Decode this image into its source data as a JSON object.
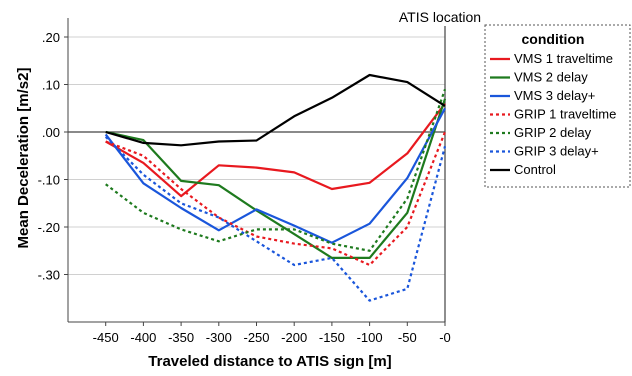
{
  "chart_data": {
    "type": "line",
    "xlabel": "Traveled distance to ATIS sign [m]",
    "ylabel": "Mean Deceleration [m/s2]",
    "x": [
      -450,
      -400,
      -350,
      -300,
      -250,
      -200,
      -150,
      -100,
      -50,
      0
    ],
    "x_tick_labels": [
      "-450",
      "-400",
      "-350",
      "-300",
      "-250",
      "-200",
      "-150",
      "-100",
      "-50",
      "-0"
    ],
    "xlim": [
      -500,
      0
    ],
    "y_ticks": [
      0.2,
      0.1,
      0.0,
      -0.1,
      -0.2,
      -0.3
    ],
    "y_tick_labels": [
      ".20",
      ".10",
      ".00",
      "-.10",
      "-.20",
      "-.30"
    ],
    "ylim": [
      -0.4,
      0.24
    ],
    "grid": true,
    "reference_line_y": 0.0,
    "annotation": {
      "text": "ATIS location",
      "x": 0
    },
    "legend": {
      "title": "condition",
      "placement": "right"
    },
    "series": [
      {
        "name": "VMS 1 traveltime",
        "color": "#e8191f",
        "style": "solid",
        "values": [
          -0.02,
          -0.065,
          -0.135,
          -0.07,
          -0.075,
          -0.085,
          -0.12,
          -0.107,
          -0.045,
          0.06
        ]
      },
      {
        "name": "VMS 2 delay",
        "color": "#1e7a1e",
        "style": "solid",
        "values": [
          0.0,
          -0.017,
          -0.103,
          -0.112,
          -0.165,
          -0.215,
          -0.265,
          -0.265,
          -0.17,
          0.07
        ]
      },
      {
        "name": "VMS 3 delay+",
        "color": "#1a56db",
        "style": "solid",
        "values": [
          -0.005,
          -0.108,
          -0.16,
          -0.207,
          -0.163,
          -0.197,
          -0.233,
          -0.193,
          -0.097,
          0.05
        ]
      },
      {
        "name": "GRIP 1 traveltime",
        "color": "#e8191f",
        "style": "dotted",
        "values": [
          -0.02,
          -0.05,
          -0.12,
          -0.18,
          -0.22,
          -0.235,
          -0.245,
          -0.28,
          -0.2,
          0.0
        ]
      },
      {
        "name": "GRIP 2 delay",
        "color": "#1e7a1e",
        "style": "dotted",
        "values": [
          -0.11,
          -0.17,
          -0.205,
          -0.23,
          -0.205,
          -0.205,
          -0.235,
          -0.25,
          -0.14,
          0.09
        ]
      },
      {
        "name": "GRIP 3 delay+",
        "color": "#1a56db",
        "style": "dotted",
        "values": [
          -0.01,
          -0.09,
          -0.15,
          -0.18,
          -0.23,
          -0.28,
          -0.265,
          -0.355,
          -0.33,
          -0.03
        ]
      },
      {
        "name": "Control",
        "color": "#000000",
        "style": "solid",
        "values": [
          0.0,
          -0.023,
          -0.028,
          -0.02,
          -0.018,
          0.033,
          0.072,
          0.12,
          0.105,
          0.055
        ]
      }
    ]
  }
}
